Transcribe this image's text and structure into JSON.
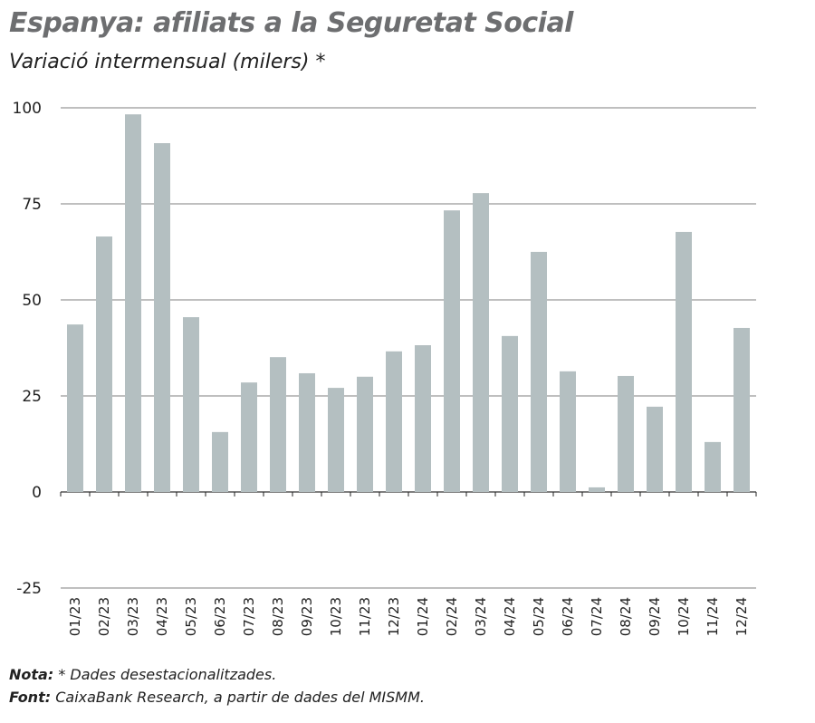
{
  "chart_data": {
    "type": "bar",
    "title": "Espanya: afiliats a la Seguretat Social",
    "subtitle": "Variació intermensual (milers) *",
    "categories": [
      "01/23",
      "02/23",
      "03/23",
      "04/23",
      "05/23",
      "06/23",
      "07/23",
      "08/23",
      "09/23",
      "10/23",
      "11/23",
      "12/23",
      "01/24",
      "02/24",
      "03/24",
      "04/24",
      "05/24",
      "06/24",
      "07/24",
      "08/24",
      "09/24",
      "10/24",
      "11/24",
      "12/24"
    ],
    "values": [
      43.6,
      66.5,
      98.3,
      90.8,
      45.5,
      15.6,
      28.5,
      35.1,
      30.9,
      27.1,
      30.0,
      36.6,
      38.2,
      73.3,
      77.8,
      40.6,
      62.5,
      31.4,
      1.2,
      30.2,
      22.2,
      67.7,
      13.0,
      42.7
    ],
    "ylim": [
      -25,
      100
    ],
    "yticks": [
      100,
      75,
      50,
      25,
      0,
      -25
    ],
    "grid": true,
    "bar_color": "#b4bfc1"
  },
  "notes": {
    "nota_label": "Nota:",
    "nota_text": " * Dades desestacionalitzades.",
    "font_label": "Font:",
    "font_text": " CaixaBank Research, a partir de dades del MISMM."
  }
}
